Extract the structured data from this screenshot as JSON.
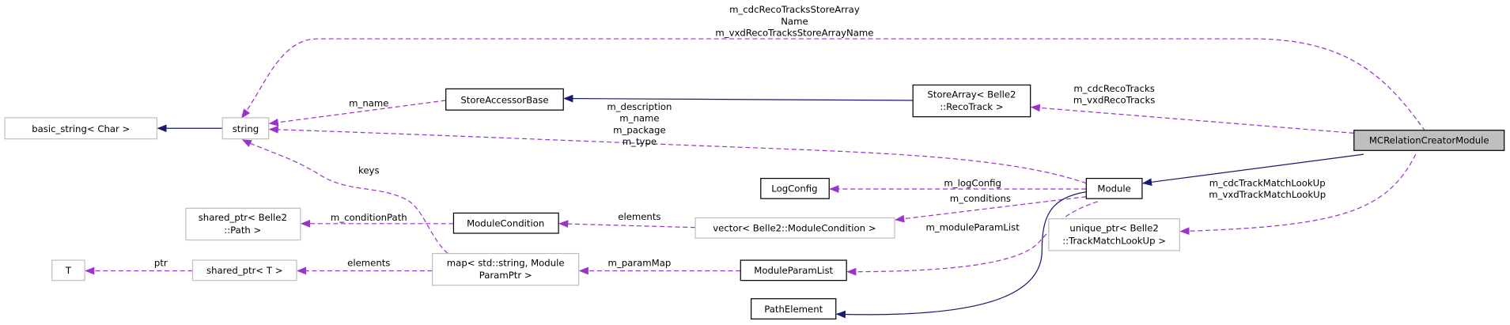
{
  "colors": {
    "inheritance": "#191970",
    "usage": "#9a32cd",
    "highlight_fill": "#bfbfbf"
  },
  "nodes": {
    "basic_string": "basic_string< Char >",
    "string": "string",
    "store_accessor_base": "StoreAccessorBase",
    "store_array": [
      "StoreArray< Belle2",
      "::RecoTrack >"
    ],
    "mc_relation": "MCRelationCreatorModule",
    "module": "Module",
    "log_config": "LogConfig",
    "module_condition": "ModuleCondition",
    "vector": "vector< Belle2::ModuleCondition >",
    "shared_ptr_path": [
      "shared_ptr< Belle2",
      "::Path >"
    ],
    "t": "T",
    "shared_ptr_t": "shared_ptr< T >",
    "map": [
      "map< std::string, Module",
      "ParamPtr >"
    ],
    "module_param_list": "ModuleParamList",
    "unique_ptr": [
      "unique_ptr< Belle2",
      "::TrackMatchLookUp >"
    ],
    "path_element": "PathElement"
  },
  "edges": {
    "reco_store_names": [
      "m_cdcRecoTracksStoreArray",
      "Name",
      "m_vxdRecoTracksStoreArrayName"
    ],
    "reco_tracks": [
      "m_cdcRecoTracks",
      "m_vxdRecoTracks"
    ],
    "m_name": "m_name",
    "module_strings": [
      "m_description",
      "m_name",
      "m_package",
      "m_type"
    ],
    "m_logConfig": "m_logConfig",
    "m_conditions": "m_conditions",
    "m_moduleParamList": "m_moduleParamList",
    "track_match": [
      "m_cdcTrackMatchLookUp",
      "m_vxdTrackMatchLookUp"
    ],
    "vector_elements": "elements",
    "m_conditionPath": "m_conditionPath",
    "keys": "keys",
    "map_elements": "elements",
    "m_paramMap": "m_paramMap",
    "ptr": "ptr"
  }
}
